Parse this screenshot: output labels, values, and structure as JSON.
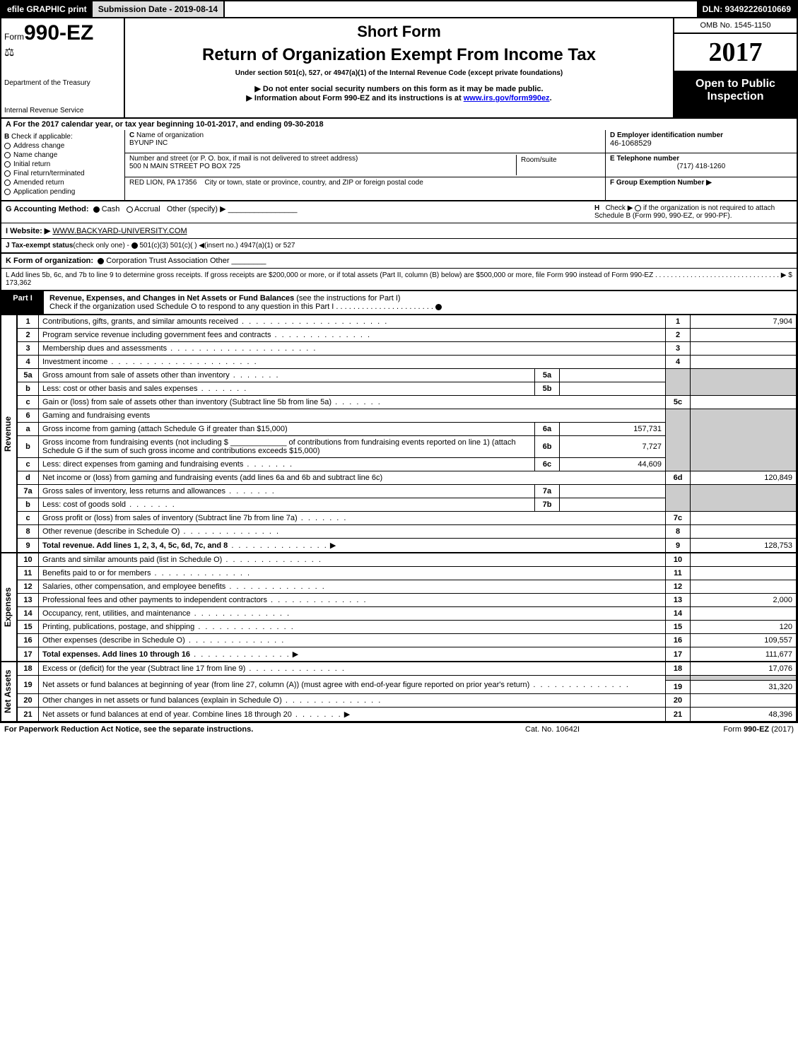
{
  "topbar": {
    "efile_btn": "efile GRAPHIC print",
    "submission": "Submission Date - 2019-08-14",
    "dln": "DLN: 93492226010669"
  },
  "header": {
    "form_prefix": "Form",
    "form_number": "990-EZ",
    "dept1": "Department of the Treasury",
    "dept2": "Internal Revenue Service",
    "short_form": "Short Form",
    "return_title": "Return of Organization Exempt From Income Tax",
    "under_section": "Under section 501(c), 527, or 4947(a)(1) of the Internal Revenue Code (except private foundations)",
    "do_not": "▶ Do not enter social security numbers on this form as it may be made public.",
    "info_about": "▶ Information about Form 990-EZ and its instructions is at ",
    "info_link": "www.irs.gov/form990ez",
    "info_period": ".",
    "omb": "OMB No. 1545-1150",
    "year": "2017",
    "open": "Open to Public Inspection"
  },
  "line_a": {
    "label": "A  For the 2017 calendar year, or tax year beginning ",
    "begin": "10-01-2017",
    "ending_label": ", and ending ",
    "end": "09-30-2018"
  },
  "section_b": {
    "label": "B",
    "check": "Check if applicable:",
    "opts": [
      "Address change",
      "Name change",
      "Initial return",
      "Final return/terminated",
      "Amended return",
      "Application pending"
    ]
  },
  "section_c": {
    "c_label": "C",
    "name_label": "Name of organization",
    "name": "BYUNP INC",
    "street_label": "Number and street (or P. O. box, if mail is not delivered to street address)",
    "street": "500 N MAIN STREET PO BOX 725",
    "room_label": "Room/suite",
    "city_label": "City or town, state or province, country, and ZIP or foreign postal code",
    "city": "RED LION, PA  17356"
  },
  "section_d": {
    "label": "D Employer identification number",
    "ein": "46-1068529"
  },
  "section_e": {
    "label": "E Telephone number",
    "phone": "(717) 418-1260"
  },
  "section_f": {
    "label": "F Group Exemption Number  ▶"
  },
  "section_g": {
    "label": "G Accounting Method:",
    "cash": "Cash",
    "accrual": "Accrual",
    "other": "Other (specify) ▶",
    "h_label": "H",
    "h_check": "Check ▶",
    "h_text": "if the organization is not required to attach Schedule B (Form 990, 990-EZ, or 990-PF)."
  },
  "section_i": {
    "label": "I Website: ▶",
    "url": "WWW.BACKYARD-UNIVERSITY.COM"
  },
  "section_j": {
    "label": "J Tax-exempt status",
    "note": "(check only one) - ",
    "opts": "501(c)(3)    501(c)(  ) ◀(insert no.)    4947(a)(1) or    527"
  },
  "section_k": {
    "label": "K Form of organization:",
    "opts": "Corporation    Trust    Association    Other"
  },
  "section_l": {
    "text": "L Add lines 5b, 6c, and 7b to line 9 to determine gross receipts. If gross receipts are $200,000 or more, or if total assets (Part II, column (B) below) are $500,000 or more, file Form 990 instead of Form 990-EZ  .  .  .  .  .  .  .  .  .  .  .  .  .  .  .  .  .  .  .  .  .  .  .  .  .  .  .  .  .  .  .  .  ▶ $ 173,362"
  },
  "part1": {
    "label": "Part I",
    "title": "Revenue, Expenses, and Changes in Net Assets or Fund Balances",
    "subtitle": " (see the instructions for Part I)",
    "check_line": "Check if the organization used Schedule O to respond to any question in this Part I "
  },
  "revenue_label": "Revenue",
  "expenses_label": "Expenses",
  "netassets_label": "Net Assets",
  "lines": {
    "l1": {
      "num": "1",
      "desc": "Contributions, gifts, grants, and similar amounts received",
      "val": "7,904"
    },
    "l2": {
      "num": "2",
      "desc": "Program service revenue including government fees and contracts",
      "val": ""
    },
    "l3": {
      "num": "3",
      "desc": "Membership dues and assessments",
      "val": ""
    },
    "l4": {
      "num": "4",
      "desc": "Investment income",
      "val": ""
    },
    "l5a": {
      "num": "5a",
      "desc": "Gross amount from sale of assets other than inventory",
      "sub": "5a",
      "subval": ""
    },
    "l5b": {
      "num": "b",
      "desc": "Less: cost or other basis and sales expenses",
      "sub": "5b",
      "subval": ""
    },
    "l5c": {
      "num": "c",
      "desc": "Gain or (loss) from sale of assets other than inventory (Subtract line 5b from line 5a)",
      "linenum": "5c",
      "val": ""
    },
    "l6": {
      "num": "6",
      "desc": "Gaming and fundraising events"
    },
    "l6a": {
      "num": "a",
      "desc": "Gross income from gaming (attach Schedule G if greater than $15,000)",
      "sub": "6a",
      "subval": "157,731"
    },
    "l6b": {
      "num": "b",
      "desc": "Gross income from fundraising events (not including $ _____________ of contributions from fundraising events reported on line 1) (attach Schedule G if the sum of such gross income and contributions exceeds $15,000)",
      "sub": "6b",
      "subval": "7,727"
    },
    "l6c": {
      "num": "c",
      "desc": "Less: direct expenses from gaming and fundraising events",
      "sub": "6c",
      "subval": "44,609"
    },
    "l6d": {
      "num": "d",
      "desc": "Net income or (loss) from gaming and fundraising events (add lines 6a and 6b and subtract line 6c)",
      "linenum": "6d",
      "val": "120,849"
    },
    "l7a": {
      "num": "7a",
      "desc": "Gross sales of inventory, less returns and allowances",
      "sub": "7a",
      "subval": ""
    },
    "l7b": {
      "num": "b",
      "desc": "Less: cost of goods sold",
      "sub": "7b",
      "subval": ""
    },
    "l7c": {
      "num": "c",
      "desc": "Gross profit or (loss) from sales of inventory (Subtract line 7b from line 7a)",
      "linenum": "7c",
      "val": ""
    },
    "l8": {
      "num": "8",
      "desc": "Other revenue (describe in Schedule O)",
      "linenum": "8",
      "val": ""
    },
    "l9": {
      "num": "9",
      "desc": "Total revenue. Add lines 1, 2, 3, 4, 5c, 6d, 7c, and 8",
      "linenum": "9",
      "val": "128,753"
    },
    "l10": {
      "num": "10",
      "desc": "Grants and similar amounts paid (list in Schedule O)",
      "linenum": "10",
      "val": ""
    },
    "l11": {
      "num": "11",
      "desc": "Benefits paid to or for members",
      "linenum": "11",
      "val": ""
    },
    "l12": {
      "num": "12",
      "desc": "Salaries, other compensation, and employee benefits",
      "linenum": "12",
      "val": ""
    },
    "l13": {
      "num": "13",
      "desc": "Professional fees and other payments to independent contractors",
      "linenum": "13",
      "val": "2,000"
    },
    "l14": {
      "num": "14",
      "desc": "Occupancy, rent, utilities, and maintenance",
      "linenum": "14",
      "val": ""
    },
    "l15": {
      "num": "15",
      "desc": "Printing, publications, postage, and shipping",
      "linenum": "15",
      "val": "120"
    },
    "l16": {
      "num": "16",
      "desc": "Other expenses (describe in Schedule O)",
      "linenum": "16",
      "val": "109,557"
    },
    "l17": {
      "num": "17",
      "desc": "Total expenses. Add lines 10 through 16",
      "linenum": "17",
      "val": "111,677"
    },
    "l18": {
      "num": "18",
      "desc": "Excess or (deficit) for the year (Subtract line 17 from line 9)",
      "linenum": "18",
      "val": "17,076"
    },
    "l19": {
      "num": "19",
      "desc": "Net assets or fund balances at beginning of year (from line 27, column (A)) (must agree with end-of-year figure reported on prior year's return)",
      "linenum": "19",
      "val": "31,320"
    },
    "l20": {
      "num": "20",
      "desc": "Other changes in net assets or fund balances (explain in Schedule O)",
      "linenum": "20",
      "val": ""
    },
    "l21": {
      "num": "21",
      "desc": "Net assets or fund balances at end of year. Combine lines 18 through 20",
      "linenum": "21",
      "val": "48,396"
    }
  },
  "footer": {
    "left": "For Paperwork Reduction Act Notice, see the separate instructions.",
    "mid": "Cat. No. 10642I",
    "right_prefix": "Form ",
    "right_form": "990-EZ",
    "right_year": " (2017)"
  },
  "colors": {
    "black": "#000000",
    "shaded": "#cccccc",
    "link": "#0000ee"
  }
}
